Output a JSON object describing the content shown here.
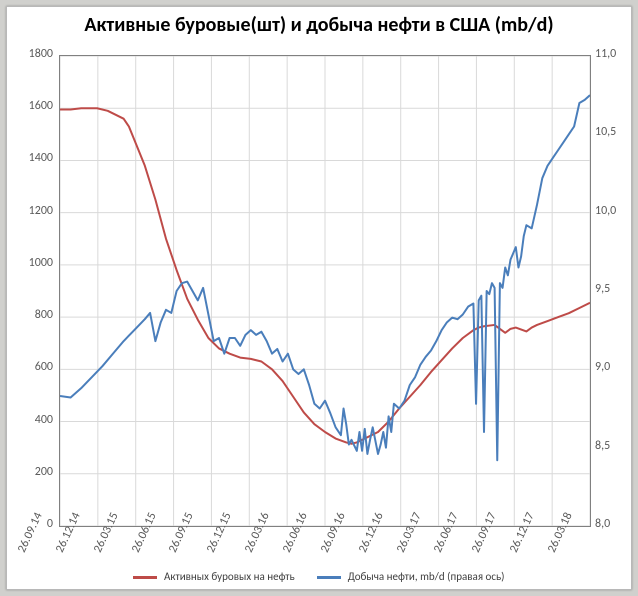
{
  "chart": {
    "type": "line_dual_axis",
    "title": "Активные буровые(шт) и добыча нефти в США (mb/d)",
    "title_fontsize": 20,
    "title_fontweight": "bold",
    "title_color": "#000000",
    "background_color": "#ffffff",
    "frame_border_color": "#808080",
    "outer_background": "#d0d0cd",
    "gridline_color": "#d9d9d9",
    "axis_label_color": "#595959",
    "axis_fontsize": 12,
    "legend_fontsize": 11,
    "line_width": 2,
    "x": {
      "ticks": [
        "26.09.14",
        "26.12.14",
        "26.03.15",
        "26.06.15",
        "26.09.15",
        "26.12.15",
        "26.03.16",
        "26.06.16",
        "26.09.16",
        "26.12.16",
        "26.03.17",
        "26.06.17",
        "26.09.17",
        "26.12.17",
        "26.03.18"
      ],
      "label_rotation_deg": -65
    },
    "y_left": {
      "min": 0,
      "max": 1800,
      "step": 200,
      "ticks": [
        0,
        200,
        400,
        600,
        800,
        1000,
        1200,
        1400,
        1600,
        1800
      ]
    },
    "y_right": {
      "min": 8.0,
      "max": 11.0,
      "step": 0.5,
      "ticks": [
        "8,0",
        "8,5",
        "9,0",
        "9,5",
        "10,0",
        "10,5",
        "11,0"
      ],
      "tick_values": [
        8.0,
        8.5,
        9.0,
        9.5,
        10.0,
        10.5,
        11.0
      ]
    },
    "series": [
      {
        "name": "Активных буровых на нефть",
        "axis": "left",
        "color": "#be4b48",
        "data": [
          [
            0.0,
            1595
          ],
          [
            0.02,
            1595
          ],
          [
            0.04,
            1600
          ],
          [
            0.07,
            1600
          ],
          [
            0.09,
            1590
          ],
          [
            0.1,
            1580
          ],
          [
            0.12,
            1560
          ],
          [
            0.13,
            1530
          ],
          [
            0.14,
            1480
          ],
          [
            0.16,
            1380
          ],
          [
            0.18,
            1250
          ],
          [
            0.2,
            1100
          ],
          [
            0.22,
            980
          ],
          [
            0.24,
            870
          ],
          [
            0.26,
            790
          ],
          [
            0.28,
            720
          ],
          [
            0.3,
            680
          ],
          [
            0.32,
            660
          ],
          [
            0.34,
            645
          ],
          [
            0.36,
            640
          ],
          [
            0.38,
            630
          ],
          [
            0.4,
            600
          ],
          [
            0.42,
            555
          ],
          [
            0.44,
            495
          ],
          [
            0.46,
            435
          ],
          [
            0.48,
            390
          ],
          [
            0.5,
            360
          ],
          [
            0.52,
            335
          ],
          [
            0.54,
            320
          ],
          [
            0.55,
            315
          ],
          [
            0.56,
            320
          ],
          [
            0.58,
            340
          ],
          [
            0.6,
            360
          ],
          [
            0.62,
            400
          ],
          [
            0.64,
            450
          ],
          [
            0.66,
            495
          ],
          [
            0.68,
            540
          ],
          [
            0.7,
            590
          ],
          [
            0.72,
            635
          ],
          [
            0.74,
            680
          ],
          [
            0.76,
            720
          ],
          [
            0.78,
            750
          ],
          [
            0.79,
            760
          ],
          [
            0.8,
            765
          ],
          [
            0.82,
            770
          ],
          [
            0.84,
            740
          ],
          [
            0.85,
            755
          ],
          [
            0.86,
            760
          ],
          [
            0.88,
            745
          ],
          [
            0.89,
            760
          ],
          [
            0.9,
            770
          ],
          [
            0.92,
            785
          ],
          [
            0.94,
            800
          ],
          [
            0.96,
            815
          ],
          [
            0.98,
            835
          ],
          [
            1.0,
            855
          ]
        ]
      },
      {
        "name": "Добыча нефти, mb/d (правая ось)",
        "axis": "right",
        "color": "#4a7ebb",
        "data": [
          [
            0.0,
            8.83
          ],
          [
            0.02,
            8.82
          ],
          [
            0.04,
            8.88
          ],
          [
            0.06,
            8.95
          ],
          [
            0.08,
            9.02
          ],
          [
            0.1,
            9.1
          ],
          [
            0.12,
            9.18
          ],
          [
            0.14,
            9.25
          ],
          [
            0.16,
            9.32
          ],
          [
            0.17,
            9.36
          ],
          [
            0.18,
            9.18
          ],
          [
            0.19,
            9.3
          ],
          [
            0.2,
            9.38
          ],
          [
            0.21,
            9.36
          ],
          [
            0.22,
            9.5
          ],
          [
            0.23,
            9.55
          ],
          [
            0.24,
            9.56
          ],
          [
            0.25,
            9.5
          ],
          [
            0.26,
            9.44
          ],
          [
            0.27,
            9.52
          ],
          [
            0.28,
            9.35
          ],
          [
            0.29,
            9.18
          ],
          [
            0.3,
            9.2
          ],
          [
            0.31,
            9.1
          ],
          [
            0.32,
            9.2
          ],
          [
            0.33,
            9.2
          ],
          [
            0.34,
            9.15
          ],
          [
            0.35,
            9.22
          ],
          [
            0.36,
            9.25
          ],
          [
            0.37,
            9.22
          ],
          [
            0.38,
            9.24
          ],
          [
            0.39,
            9.18
          ],
          [
            0.4,
            9.1
          ],
          [
            0.41,
            9.13
          ],
          [
            0.42,
            9.05
          ],
          [
            0.43,
            9.1
          ],
          [
            0.44,
            9.0
          ],
          [
            0.45,
            8.97
          ],
          [
            0.46,
            9.0
          ],
          [
            0.47,
            8.9
          ],
          [
            0.48,
            8.78
          ],
          [
            0.49,
            8.75
          ],
          [
            0.5,
            8.8
          ],
          [
            0.51,
            8.72
          ],
          [
            0.52,
            8.63
          ],
          [
            0.53,
            8.58
          ],
          [
            0.535,
            8.75
          ],
          [
            0.54,
            8.65
          ],
          [
            0.545,
            8.52
          ],
          [
            0.55,
            8.55
          ],
          [
            0.56,
            8.48
          ],
          [
            0.565,
            8.6
          ],
          [
            0.57,
            8.48
          ],
          [
            0.575,
            8.62
          ],
          [
            0.58,
            8.46
          ],
          [
            0.585,
            8.55
          ],
          [
            0.59,
            8.63
          ],
          [
            0.6,
            8.46
          ],
          [
            0.605,
            8.52
          ],
          [
            0.61,
            8.6
          ],
          [
            0.615,
            8.5
          ],
          [
            0.62,
            8.7
          ],
          [
            0.625,
            8.6
          ],
          [
            0.63,
            8.78
          ],
          [
            0.64,
            8.75
          ],
          [
            0.65,
            8.8
          ],
          [
            0.66,
            8.9
          ],
          [
            0.67,
            8.95
          ],
          [
            0.68,
            9.03
          ],
          [
            0.69,
            9.08
          ],
          [
            0.7,
            9.12
          ],
          [
            0.71,
            9.18
          ],
          [
            0.72,
            9.25
          ],
          [
            0.73,
            9.3
          ],
          [
            0.74,
            9.33
          ],
          [
            0.75,
            9.32
          ],
          [
            0.76,
            9.35
          ],
          [
            0.77,
            9.4
          ],
          [
            0.78,
            9.42
          ],
          [
            0.785,
            8.78
          ],
          [
            0.79,
            9.44
          ],
          [
            0.795,
            9.47
          ],
          [
            0.8,
            8.6
          ],
          [
            0.805,
            9.5
          ],
          [
            0.81,
            9.48
          ],
          [
            0.815,
            9.55
          ],
          [
            0.82,
            9.52
          ],
          [
            0.825,
            8.42
          ],
          [
            0.83,
            9.55
          ],
          [
            0.835,
            9.52
          ],
          [
            0.84,
            9.65
          ],
          [
            0.845,
            9.6
          ],
          [
            0.85,
            9.7
          ],
          [
            0.86,
            9.78
          ],
          [
            0.865,
            9.65
          ],
          [
            0.87,
            9.72
          ],
          [
            0.875,
            9.85
          ],
          [
            0.88,
            9.92
          ],
          [
            0.89,
            9.9
          ],
          [
            0.9,
            10.05
          ],
          [
            0.91,
            10.22
          ],
          [
            0.92,
            10.3
          ],
          [
            0.93,
            10.35
          ],
          [
            0.94,
            10.4
          ],
          [
            0.95,
            10.45
          ],
          [
            0.96,
            10.5
          ],
          [
            0.97,
            10.55
          ],
          [
            0.98,
            10.7
          ],
          [
            0.99,
            10.72
          ],
          [
            1.0,
            10.75
          ]
        ]
      }
    ],
    "legend_position": "bottom"
  }
}
